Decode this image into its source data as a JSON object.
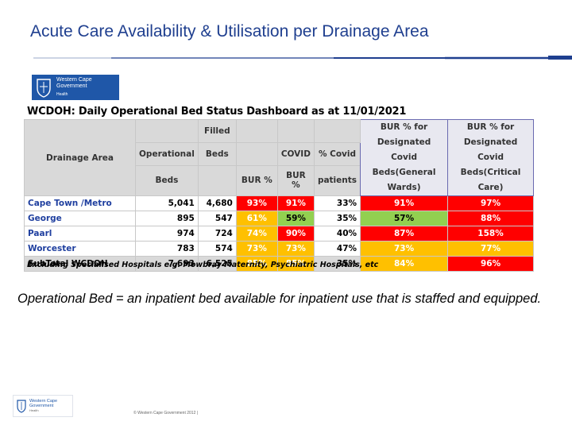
{
  "slide": {
    "title": "Acute Care Availability & Utilisation per Drainage Area",
    "definition": "Operational Bed = an inpatient bed available for inpatient use that is staffed and equipped."
  },
  "logo": {
    "line1": "Western Cape",
    "line2": "Government",
    "line3": "Health"
  },
  "dashboard": {
    "title": "WCDOH: Daily Operational Bed Status Dashboard as at 11/01/2021",
    "exclusions": "Excluding Specialised Hospitals e.g. Mowbray Maternity, Psychiatric Hospitals, etc",
    "headers": {
      "drainage_area": "Drainage Area",
      "operational_beds": [
        "",
        "Operational",
        "Beds"
      ],
      "filled_beds": [
        "Filled",
        "Beds",
        ""
      ],
      "bur_pct": [
        "",
        "",
        "BUR %"
      ],
      "covid_bur": [
        "",
        "COVID",
        "BUR %"
      ],
      "pct_covid": [
        "",
        "% Covid",
        "patients"
      ],
      "bur_general": [
        "BUR % for",
        "Designated Covid",
        "Beds(General",
        "Wards)"
      ],
      "bur_critical": [
        "BUR % for",
        "Designated Covid",
        "Beds(Critical",
        "Care)"
      ]
    },
    "rows": [
      {
        "area": "Cape Town /Metro",
        "operational": "5,041",
        "filled": "4,680",
        "bur": "93%",
        "covid_bur": "91%",
        "pct_covid": "33%",
        "bur_general": "91%",
        "bur_critical": "97%"
      },
      {
        "area": "George",
        "operational": "895",
        "filled": "547",
        "bur": "61%",
        "covid_bur": "59%",
        "pct_covid": "35%",
        "bur_general": "57%",
        "bur_critical": "88%"
      },
      {
        "area": "Paarl",
        "operational": "974",
        "filled": "724",
        "bur": "74%",
        "covid_bur": "90%",
        "pct_covid": "40%",
        "bur_general": "87%",
        "bur_critical": "158%"
      },
      {
        "area": "Worcester",
        "operational": "783",
        "filled": "574",
        "bur": "73%",
        "covid_bur": "73%",
        "pct_covid": "47%",
        "bur_general": "73%",
        "bur_critical": "77%"
      },
      {
        "area": "SubTotal WCDOH",
        "operational": "7,693",
        "filled": "6,525",
        "bur": "85%",
        "covid_bur": "85%",
        "pct_covid": "35%",
        "bur_general": "84%",
        "bur_critical": "96%"
      }
    ],
    "colors": {
      "red": "#ff0000",
      "amber": "#ffc000",
      "green": "#92d050",
      "text_on_red": "#ffffff",
      "text_on_amber": "#ffffff",
      "text_on_green": "#000000"
    }
  },
  "footer": {
    "copyright": "© Western Cape Government 2012 |"
  },
  "brand": {
    "title_color": "#1f3f8f",
    "rule_color": "#1f3f8f",
    "logo_bg": "#1f57a8"
  }
}
